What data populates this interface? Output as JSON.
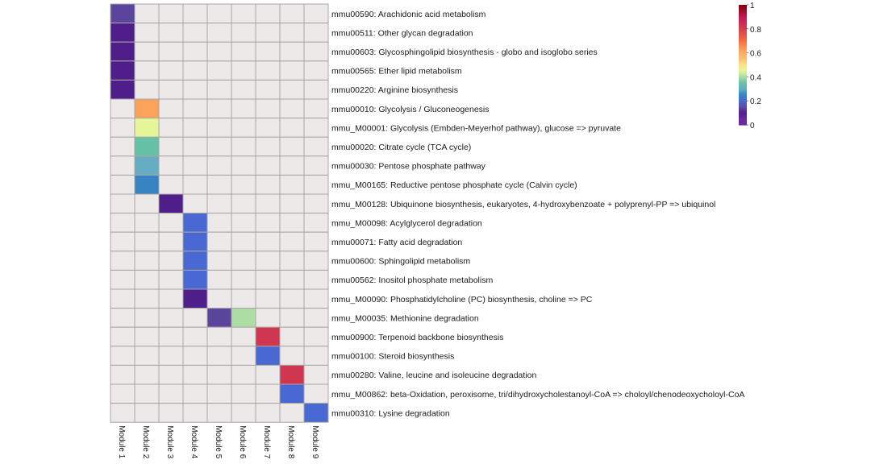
{
  "chart_data": {
    "type": "heatmap",
    "columns": [
      "Module 1",
      "Module 2",
      "Module 3",
      "Module 4",
      "Module 5",
      "Module 6",
      "Module 7",
      "Module 8",
      "Module 9"
    ],
    "rows": [
      "mmu00590: Arachidonic acid metabolism",
      "mmu00511: Other glycan degradation",
      "mmu00603: Glycosphingolipid biosynthesis - globo and isoglobo series",
      "mmu00565: Ether lipid metabolism",
      "mmu00220: Arginine biosynthesis",
      "mmu00010: Glycolysis / Gluconeogenesis",
      "mmu_M00001: Glycolysis (Embden-Meyerhof pathway), glucose => pyruvate",
      "mmu00020: Citrate cycle (TCA cycle)",
      "mmu00030: Pentose phosphate pathway",
      "mmu_M00165: Reductive pentose phosphate cycle (Calvin cycle)",
      "mmu_M00128: Ubiquinone biosynthesis, eukaryotes, 4-hydroxybenzoate + polyprenyl-PP => ubiquinol",
      "mmu_M00098: Acylglycerol degradation",
      "mmu00071: Fatty acid degradation",
      "mmu00600: Sphingolipid metabolism",
      "mmu00562: Inositol phosphate metabolism",
      "mmu_M00090: Phosphatidylcholine (PC) biosynthesis, choline => PC",
      "mmu_M00035: Methionine degradation",
      "mmu00900: Terpenoid backbone biosynthesis",
      "mmu00100: Steroid biosynthesis",
      "mmu00280: Valine, leucine and isoleucine degradation",
      "mmu_M00862: beta-Oxidation, peroxisome, tri/dihydroxycholestanoyl-CoA => choloyl/chenodeoxycholoyl-CoA",
      "mmu00310: Lysine degradation"
    ],
    "values": [
      [
        0.14,
        0,
        0,
        0,
        0,
        0,
        0,
        0,
        0
      ],
      [
        0.1,
        0,
        0,
        0,
        0,
        0,
        0,
        0,
        0
      ],
      [
        0.1,
        0,
        0,
        0,
        0,
        0,
        0,
        0,
        0
      ],
      [
        0.1,
        0,
        0,
        0,
        0,
        0,
        0,
        0,
        0
      ],
      [
        0.1,
        0,
        0,
        0,
        0,
        0,
        0,
        0,
        0
      ],
      [
        0,
        0.62,
        0,
        0,
        0,
        0,
        0,
        0,
        0
      ],
      [
        0,
        0.45,
        0,
        0,
        0,
        0,
        0,
        0,
        0
      ],
      [
        0,
        0.35,
        0,
        0,
        0,
        0,
        0,
        0,
        0
      ],
      [
        0,
        0.3,
        0,
        0,
        0,
        0,
        0,
        0,
        0
      ],
      [
        0,
        0.24,
        0,
        0,
        0,
        0,
        0,
        0,
        0
      ],
      [
        0,
        0,
        0.1,
        0,
        0,
        0,
        0,
        0,
        0
      ],
      [
        0,
        0,
        0,
        0.2,
        0,
        0,
        0,
        0,
        0
      ],
      [
        0,
        0,
        0,
        0.2,
        0,
        0,
        0,
        0,
        0
      ],
      [
        0,
        0,
        0,
        0.2,
        0,
        0,
        0,
        0,
        0
      ],
      [
        0,
        0,
        0,
        0.2,
        0,
        0,
        0,
        0,
        0
      ],
      [
        0,
        0,
        0,
        0.1,
        0,
        0,
        0,
        0,
        0
      ],
      [
        0,
        0,
        0,
        0,
        0.14,
        0.4,
        0,
        0,
        0
      ],
      [
        0,
        0,
        0,
        0,
        0,
        0,
        0.82,
        0,
        0
      ],
      [
        0,
        0,
        0,
        0,
        0,
        0,
        0.2,
        0,
        0
      ],
      [
        0,
        0,
        0,
        0,
        0,
        0,
        0,
        0.82,
        0
      ],
      [
        0,
        0,
        0,
        0,
        0,
        0,
        0,
        0.2,
        0
      ],
      [
        0,
        0,
        0,
        0,
        0,
        0,
        0,
        0,
        0.2
      ]
    ],
    "legend": {
      "ticks": [
        "1",
        "0.8",
        "0.6",
        "0.4",
        "0.2",
        "0"
      ],
      "tick_values": [
        1,
        0.8,
        0.6,
        0.4,
        0.2,
        0
      ],
      "placement": "top-right",
      "zero_color": "#eee9e9",
      "stops": [
        {
          "v": 0.05,
          "c": "#6a2b9c"
        },
        {
          "v": 0.1,
          "c": "#4f1e8a"
        },
        {
          "v": 0.15,
          "c": "#5e4fa2"
        },
        {
          "v": 0.2,
          "c": "#4a68d1"
        },
        {
          "v": 0.25,
          "c": "#3288bd"
        },
        {
          "v": 0.3,
          "c": "#66adc4"
        },
        {
          "v": 0.35,
          "c": "#66c2a5"
        },
        {
          "v": 0.4,
          "c": "#abdda4"
        },
        {
          "v": 0.45,
          "c": "#e6f598"
        },
        {
          "v": 0.5,
          "c": "#fee08b"
        },
        {
          "v": 0.55,
          "c": "#fdbf6f"
        },
        {
          "v": 0.6,
          "c": "#fdae61"
        },
        {
          "v": 0.65,
          "c": "#f99153"
        },
        {
          "v": 0.7,
          "c": "#f46d43"
        },
        {
          "v": 0.8,
          "c": "#d53e4f"
        },
        {
          "v": 0.9,
          "c": "#c2185b"
        },
        {
          "v": 1.0,
          "c": "#800000"
        }
      ]
    },
    "grid_color": "#a6a6a6"
  }
}
